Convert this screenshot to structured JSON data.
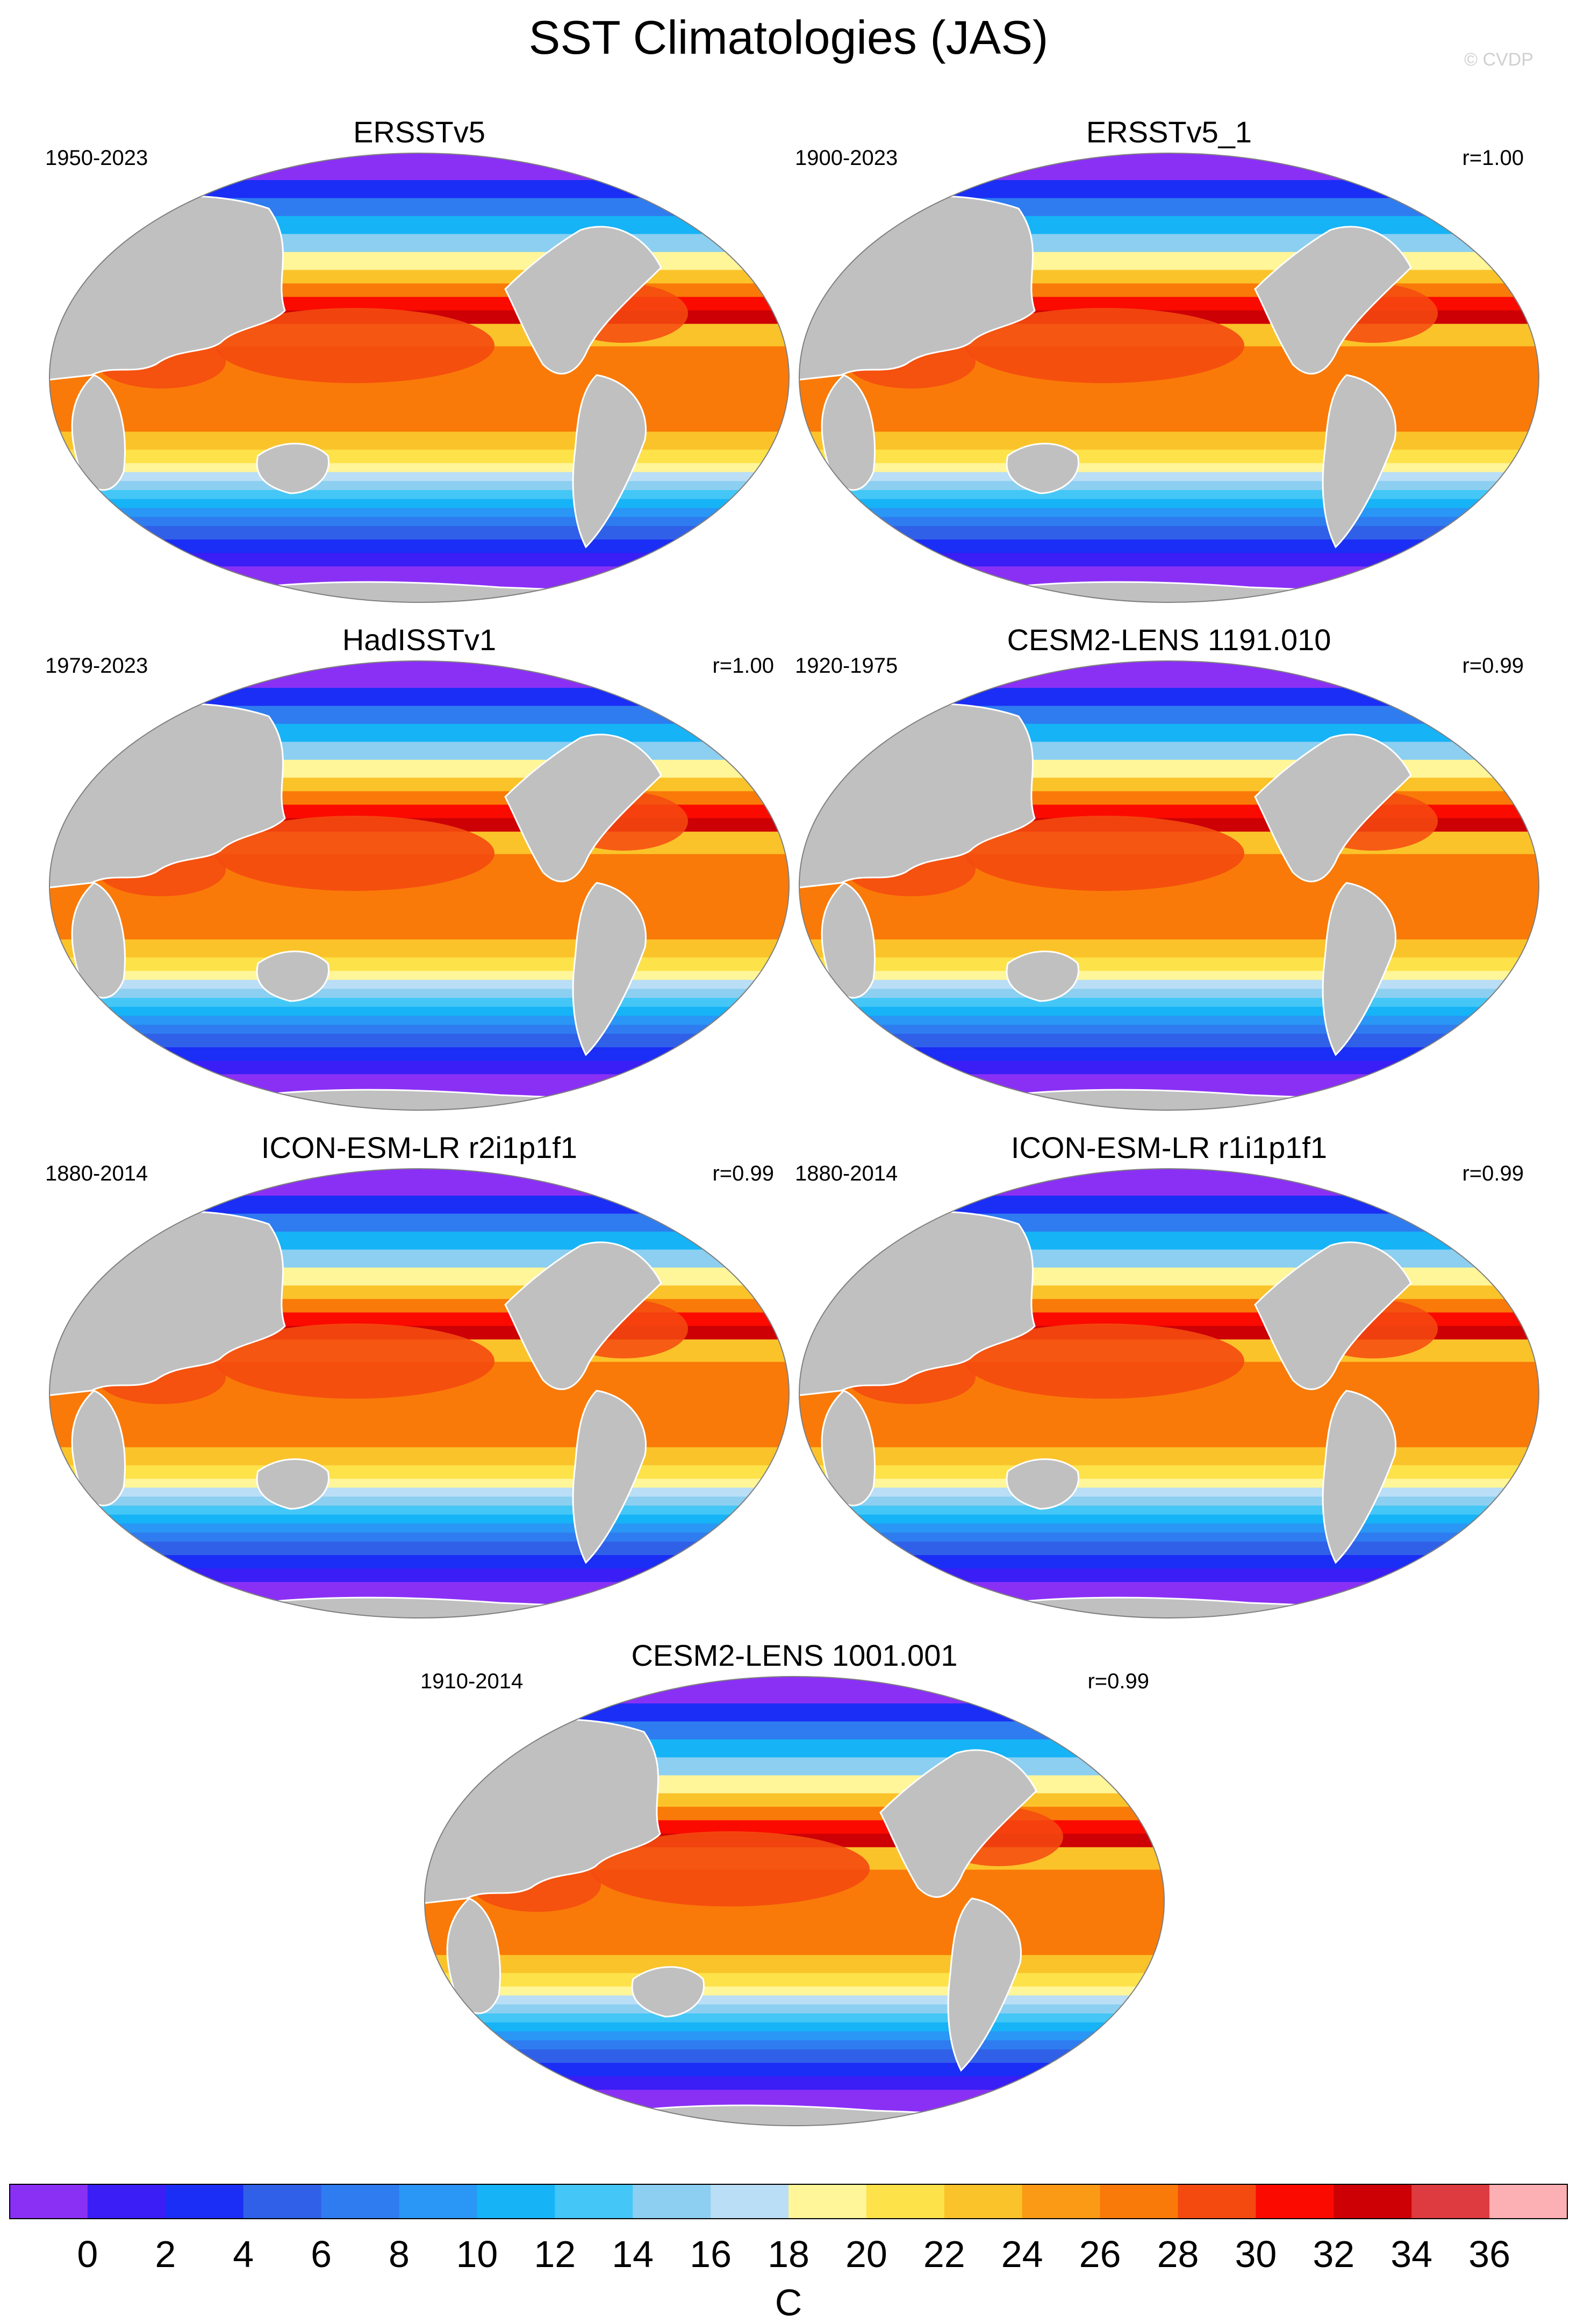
{
  "title": "SST Climatologies (JAS)",
  "credit": "© CVDP",
  "colors": {
    "land": "#c0c0c0",
    "levels": [
      "#8a30f5",
      "#3a1ef5",
      "#1a2ef5",
      "#3060e8",
      "#2f7cf0",
      "#2a96f5",
      "#16b3f7",
      "#44c7f6",
      "#8ccff0",
      "#b9def6",
      "#fff599",
      "#fde24a",
      "#fbc32a",
      "#fb9a14",
      "#f97a08",
      "#f44a10",
      "#fb0a00",
      "#cc0005",
      "#dd3b3f",
      "#fdb0b3"
    ]
  },
  "panels": [
    {
      "title": "ERSSTv5",
      "period": "1950-2023",
      "corr": ""
    },
    {
      "title": "ERSSTv5_1",
      "period": "1900-2023",
      "corr": "r=1.00"
    },
    {
      "title": "HadISSTv1",
      "period": "1979-2023",
      "corr": "r=1.00"
    },
    {
      "title": "CESM2-LENS 1191.010",
      "period": "1920-1975",
      "corr": "r=0.99"
    },
    {
      "title": "ICON-ESM-LR r2i1p1f1",
      "period": "1880-2014",
      "corr": "r=0.99"
    },
    {
      "title": "ICON-ESM-LR r1i1p1f1",
      "period": "1880-2014",
      "corr": "r=0.99"
    },
    {
      "title": "CESM2-LENS 1001.001",
      "period": "1910-2014",
      "corr": "r=0.99"
    }
  ],
  "colorbar": {
    "tick_labels": [
      "0",
      "2",
      "4",
      "6",
      "8",
      "10",
      "12",
      "14",
      "16",
      "18",
      "20",
      "22",
      "24",
      "26",
      "28",
      "30",
      "32",
      "34",
      "36"
    ],
    "units": "C"
  }
}
